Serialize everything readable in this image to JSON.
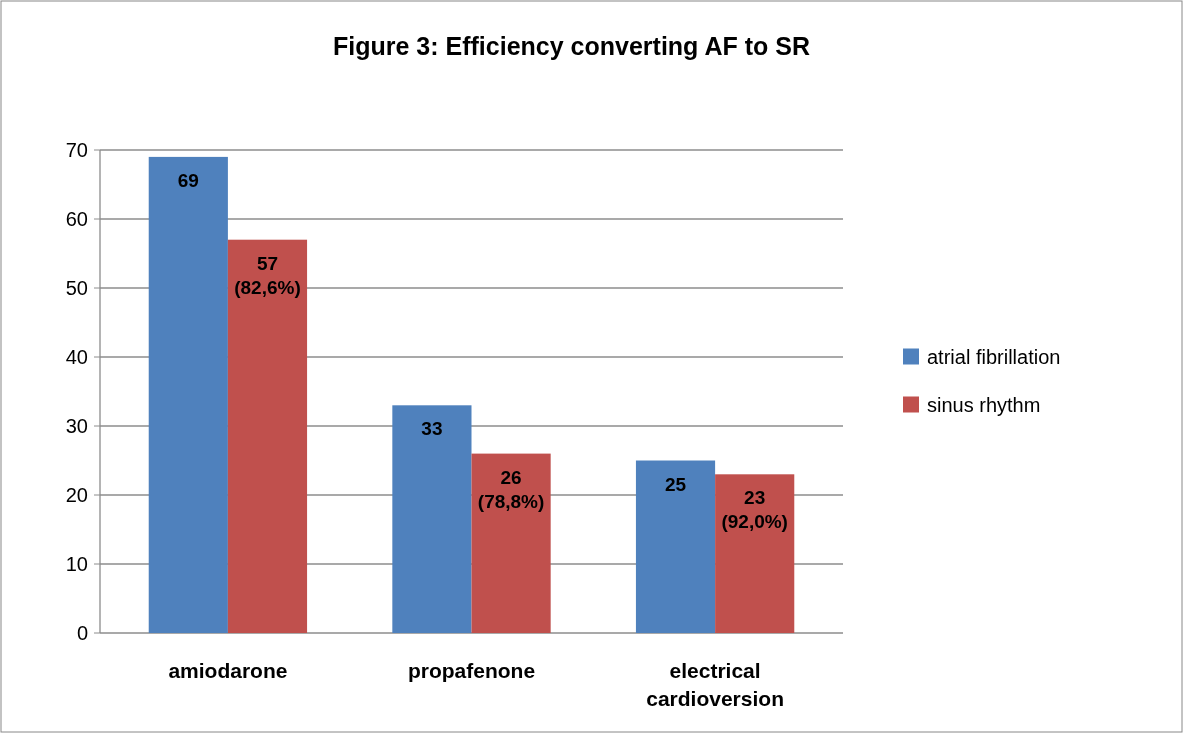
{
  "chart_data": {
    "type": "bar",
    "title": "Figure 3: Efficiency converting AF to SR",
    "categories": [
      "amiodarone",
      "propafenone",
      "electrical cardioversion"
    ],
    "series": [
      {
        "name": "atrial fibrillation",
        "color": "#4f81bd",
        "values": [
          69,
          33,
          25
        ],
        "value_labels": [
          "69",
          "33",
          "25"
        ]
      },
      {
        "name": "sinus rhythm",
        "color": "#c0504d",
        "values": [
          57,
          26,
          23
        ],
        "value_labels": [
          "57\n(82,6%)",
          "26\n(78,8%)",
          "23\n(92,0%)"
        ]
      }
    ],
    "ylim": [
      0,
      70
    ],
    "yticks": [
      0,
      10,
      20,
      30,
      40,
      50,
      60,
      70
    ],
    "grid": "y",
    "legend": "right"
  }
}
